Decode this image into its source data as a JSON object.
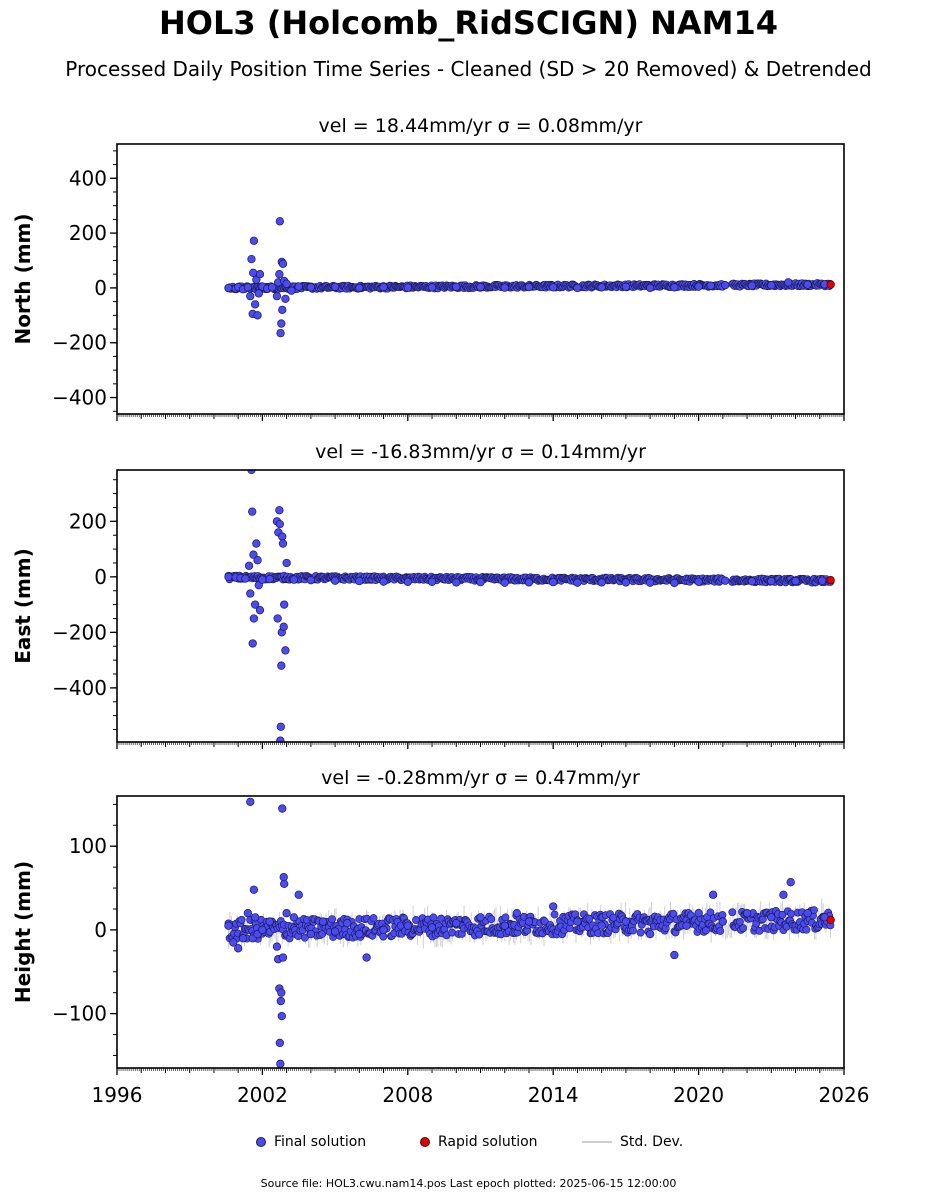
{
  "title": "HOL3 (Holcomb_RidSCIGN) NAM14",
  "subtitle": "Processed Daily Position Time Series - Cleaned (SD > 20 Removed) & Detrended",
  "legend": {
    "final": "Final solution",
    "rapid": "Rapid solution",
    "std": "Std. Dev."
  },
  "footer": "Source file: HOL3.cwu.nam14.pos  Last epoch plotted: 2025-06-15 12:00:00",
  "colors": {
    "final": "#4b4bf5",
    "rapid": "#e00000",
    "std": "#cfcfcf"
  },
  "chart_data": [
    {
      "type": "scatter",
      "title": "vel = 18.44mm/yr   σ = 0.08mm/yr",
      "ylabel": "North (mm)",
      "xlim": [
        1996,
        2026
      ],
      "ylim": [
        -460,
        525
      ],
      "yticks": [
        400,
        200,
        0,
        -200,
        -400
      ],
      "ytick_labels": [
        "400",
        "200",
        "0",
        "−200",
        "−400"
      ],
      "xticks": [
        1996,
        2002,
        2008,
        2014,
        2020,
        2026
      ],
      "xtick_labels": [],
      "grid": false,
      "series": [
        {
          "name": "Final solution",
          "points": [
            [
              2000.6,
              0
            ],
            [
              2000.9,
              -2
            ],
            [
              2001.0,
              3
            ],
            [
              2001.2,
              -5
            ],
            [
              2001.4,
              2
            ],
            [
              2001.5,
              -30
            ],
            [
              2001.55,
              105
            ],
            [
              2001.6,
              -95
            ],
            [
              2001.62,
              55
            ],
            [
              2001.65,
              172
            ],
            [
              2001.7,
              -60
            ],
            [
              2001.75,
              30
            ],
            [
              2001.8,
              -100
            ],
            [
              2001.85,
              -20
            ],
            [
              2001.9,
              50
            ],
            [
              2002.0,
              5
            ],
            [
              2002.2,
              -3
            ],
            [
              2002.4,
              2
            ],
            [
              2002.6,
              -30
            ],
            [
              2002.65,
              20
            ],
            [
              2002.7,
              50
            ],
            [
              2002.72,
              243
            ],
            [
              2002.75,
              -165
            ],
            [
              2002.78,
              -130
            ],
            [
              2002.8,
              95
            ],
            [
              2002.82,
              -80
            ],
            [
              2002.85,
              88
            ],
            [
              2002.9,
              25
            ],
            [
              2002.95,
              -40
            ],
            [
              2003.0,
              15
            ],
            [
              2003.2,
              -10
            ],
            [
              2003.5,
              5
            ],
            [
              2004,
              2
            ],
            [
              2005,
              4
            ],
            [
              2006,
              0
            ],
            [
              2007,
              3
            ],
            [
              2008,
              1
            ],
            [
              2009,
              2
            ],
            [
              2010,
              4
            ],
            [
              2011,
              3
            ],
            [
              2012,
              1
            ],
            [
              2013,
              3
            ],
            [
              2014,
              2
            ],
            [
              2015,
              0
            ],
            [
              2016,
              2
            ],
            [
              2017,
              4
            ],
            [
              2018,
              0
            ],
            [
              2019,
              2
            ],
            [
              2020,
              5
            ],
            [
              2020.5,
              8
            ],
            [
              2021.1,
              10
            ],
            [
              2022.2,
              8
            ],
            [
              2023,
              10
            ],
            [
              2023.7,
              20
            ],
            [
              2024.5,
              12
            ],
            [
              2025.2,
              13
            ]
          ]
        },
        {
          "name": "Rapid solution",
          "points": [
            [
              2025.45,
              12
            ]
          ]
        }
      ],
      "band": {
        "start": 2000.6,
        "end": 2025.45,
        "center_start": 0,
        "center_end": 12,
        "half_width": 6
      }
    },
    {
      "type": "scatter",
      "title": "vel = -16.83mm/yr   σ = 0.14mm/yr",
      "ylabel": "East (mm)",
      "xlim": [
        1996,
        2026
      ],
      "ylim": [
        -595,
        385
      ],
      "yticks": [
        200,
        0,
        -200,
        -400
      ],
      "ytick_labels": [
        "200",
        "0",
        "−200",
        "−400"
      ],
      "xticks": [
        1996,
        2002,
        2008,
        2014,
        2020,
        2026
      ],
      "xtick_labels": [],
      "grid": false,
      "series": [
        {
          "name": "Final solution",
          "points": [
            [
              2000.6,
              0
            ],
            [
              2000.9,
              -2
            ],
            [
              2001.1,
              -4
            ],
            [
              2001.3,
              -6
            ],
            [
              2001.45,
              40
            ],
            [
              2001.5,
              -60
            ],
            [
              2001.55,
              385
            ],
            [
              2001.58,
              235
            ],
            [
              2001.6,
              -240
            ],
            [
              2001.63,
              80
            ],
            [
              2001.65,
              -150
            ],
            [
              2001.7,
              -100
            ],
            [
              2001.75,
              120
            ],
            [
              2001.8,
              60
            ],
            [
              2001.85,
              -30
            ],
            [
              2001.9,
              -120
            ],
            [
              2002.0,
              -10
            ],
            [
              2002.3,
              -8
            ],
            [
              2002.6,
              200
            ],
            [
              2002.63,
              -150
            ],
            [
              2002.66,
              160
            ],
            [
              2002.7,
              240
            ],
            [
              2002.72,
              190
            ],
            [
              2002.74,
              -590
            ],
            [
              2002.76,
              -540
            ],
            [
              2002.78,
              -320
            ],
            [
              2002.8,
              -200
            ],
            [
              2002.82,
              145
            ],
            [
              2002.85,
              120
            ],
            [
              2002.88,
              -180
            ],
            [
              2002.9,
              -100
            ],
            [
              2002.95,
              -265
            ],
            [
              2003.0,
              50
            ],
            [
              2003.3,
              -10
            ],
            [
              2004,
              -12
            ],
            [
              2005,
              -14
            ],
            [
              2006,
              -15
            ],
            [
              2007,
              -17
            ],
            [
              2008,
              -18
            ],
            [
              2009,
              -18
            ],
            [
              2010,
              -20
            ],
            [
              2011,
              -19
            ],
            [
              2012,
              -21
            ],
            [
              2013,
              -20
            ],
            [
              2014,
              -19
            ],
            [
              2015,
              -21
            ],
            [
              2016,
              -20
            ],
            [
              2017,
              -20
            ],
            [
              2018,
              -21
            ],
            [
              2019,
              -22
            ],
            [
              2020,
              -18
            ],
            [
              2021.1,
              -14
            ],
            [
              2022.2,
              -16
            ],
            [
              2023,
              -15
            ],
            [
              2024,
              -15
            ],
            [
              2025.1,
              -14
            ]
          ]
        },
        {
          "name": "Rapid solution",
          "points": [
            [
              2025.45,
              -12
            ]
          ]
        }
      ],
      "band": {
        "start": 2000.6,
        "end": 2025.45,
        "center_start": -2,
        "center_end": -14,
        "half_width": 7
      }
    },
    {
      "type": "scatter",
      "title": "vel = -0.28mm/yr   σ = 0.47mm/yr",
      "ylabel": "Height (mm)",
      "xlim": [
        1996,
        2026
      ],
      "ylim": [
        -165,
        160
      ],
      "yticks": [
        100,
        0,
        -100
      ],
      "ytick_labels": [
        "100",
        "0",
        "−100"
      ],
      "xticks": [
        1996,
        2002,
        2008,
        2014,
        2020,
        2026
      ],
      "xtick_labels": [
        "1996",
        "2002",
        "2008",
        "2014",
        "2020",
        "2026"
      ],
      "grid": false,
      "series": [
        {
          "name": "Final solution",
          "points": [
            [
              2000.6,
              5
            ],
            [
              2000.8,
              -15
            ],
            [
              2001.0,
              -22
            ],
            [
              2001.2,
              -10
            ],
            [
              2001.4,
              20
            ],
            [
              2001.5,
              153
            ],
            [
              2001.6,
              -10
            ],
            [
              2001.65,
              48
            ],
            [
              2001.7,
              15
            ],
            [
              2001.8,
              -5
            ],
            [
              2002.0,
              0
            ],
            [
              2002.3,
              10
            ],
            [
              2002.6,
              -20
            ],
            [
              2002.65,
              -35
            ],
            [
              2002.7,
              -70
            ],
            [
              2002.72,
              -135
            ],
            [
              2002.74,
              -160
            ],
            [
              2002.76,
              -85
            ],
            [
              2002.78,
              -75
            ],
            [
              2002.8,
              -103
            ],
            [
              2002.82,
              145
            ],
            [
              2002.85,
              -33
            ],
            [
              2002.88,
              63
            ],
            [
              2002.9,
              55
            ],
            [
              2003.0,
              20
            ],
            [
              2003.3,
              15
            ],
            [
              2003.5,
              42
            ],
            [
              2004,
              -5
            ],
            [
              2004.5,
              10
            ],
            [
              2005,
              -2
            ],
            [
              2005.5,
              8
            ],
            [
              2006,
              -5
            ],
            [
              2006.3,
              -33
            ],
            [
              2007,
              0
            ],
            [
              2008,
              5
            ],
            [
              2009,
              3
            ],
            [
              2010,
              8
            ],
            [
              2011,
              15
            ],
            [
              2012,
              5
            ],
            [
              2012.5,
              20
            ],
            [
              2013,
              10
            ],
            [
              2014,
              28
            ],
            [
              2015,
              10
            ],
            [
              2016,
              5
            ],
            [
              2017,
              10
            ],
            [
              2018,
              -5
            ],
            [
              2019,
              -30
            ],
            [
              2019.5,
              5
            ],
            [
              2020,
              20
            ],
            [
              2020.6,
              42
            ],
            [
              2021,
              10
            ],
            [
              2022,
              20
            ],
            [
              2023,
              15
            ],
            [
              2023.5,
              42
            ],
            [
              2023.8,
              57
            ],
            [
              2024.5,
              20
            ],
            [
              2025.2,
              15
            ]
          ]
        },
        {
          "name": "Rapid solution",
          "points": [
            [
              2025.45,
              12
            ]
          ]
        }
      ],
      "band": {
        "start": 2000.6,
        "end": 2025.45,
        "center_start": 0,
        "center_end": 12,
        "half_width": 12
      }
    }
  ]
}
